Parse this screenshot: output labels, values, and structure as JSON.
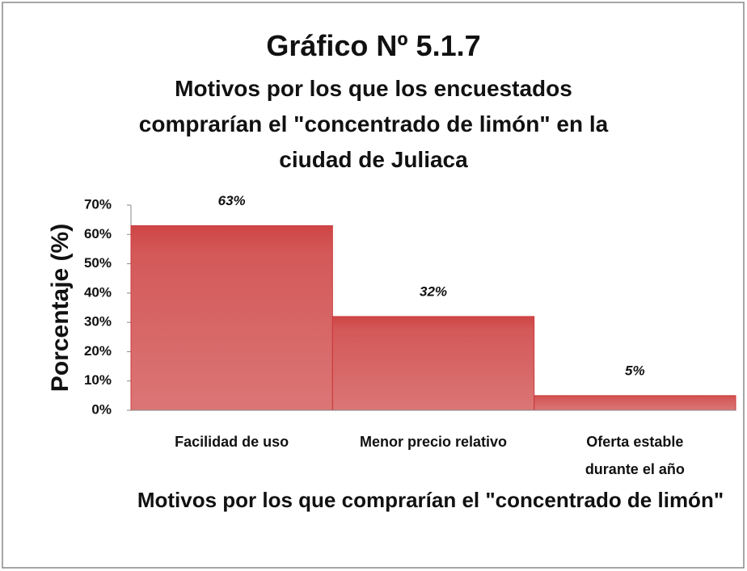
{
  "chart_data": {
    "type": "bar",
    "title": "Gráfico Nº 5.1.7",
    "subtitle": "Motivos por los que los encuestados comprarían el \"concentrado de limón\" en la ciudad de Juliaca",
    "x_label": "Motivos por los que  comprarían el \"concentrado de limón\"",
    "y_label": "Porcentaje (%)",
    "categories": [
      "Facilidad de uso",
      "Menor precio relativo",
      "Oferta estable durante el año"
    ],
    "values": [
      63,
      32,
      5
    ],
    "value_labels": [
      "63%",
      "32%",
      "5%"
    ],
    "color": "#cc3b3b",
    "ylim": [
      0,
      70
    ],
    "yticks": [
      {
        "value": 0,
        "label": "0%"
      },
      {
        "value": 10,
        "label": "10%"
      },
      {
        "value": 20,
        "label": "20%"
      },
      {
        "value": 30,
        "label": "30%"
      },
      {
        "value": 40,
        "label": "40%"
      },
      {
        "value": 50,
        "label": "50%"
      },
      {
        "value": 60,
        "label": "60%"
      },
      {
        "value": 70,
        "label": "70%"
      }
    ],
    "grid": false
  }
}
